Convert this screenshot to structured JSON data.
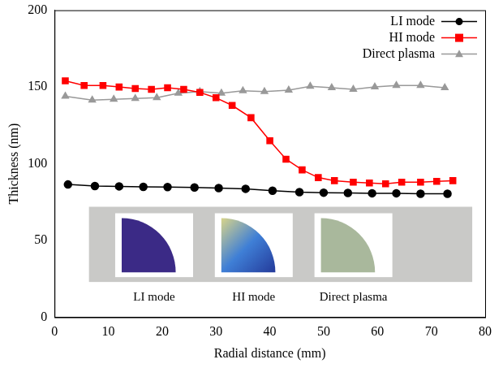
{
  "chart_data": {
    "type": "line",
    "x_label": "Radial distance (mm)",
    "y_label": "Thickness (nm)",
    "xlim": [
      0,
      80
    ],
    "xticks": [
      0,
      10,
      20,
      30,
      40,
      50,
      60,
      70,
      80
    ],
    "ylim": [
      0,
      200
    ],
    "yticks": [
      0,
      50,
      100,
      150,
      200
    ],
    "grid": false,
    "legend": "upper right",
    "annotations": [
      "LI mode",
      "HI mode",
      "Direct plasma"
    ],
    "series": [
      {
        "name": "LI mode",
        "color": "#000000",
        "marker": "circle",
        "line_style": "solid",
        "x": [
          2.5,
          7.5,
          12,
          16.5,
          21,
          26,
          30.5,
          35.5,
          40.5,
          45.5,
          50,
          54.5,
          59,
          63.5,
          68,
          73
        ],
        "values": [
          86.5,
          85.5,
          85.3,
          85,
          84.8,
          84.6,
          84.2,
          83.7,
          82.5,
          81.5,
          81.2,
          81,
          80.8,
          80.8,
          80.5,
          80.5
        ]
      },
      {
        "name": "HI mode",
        "color": "#ff0000",
        "marker": "square",
        "line_style": "solid",
        "x": [
          2,
          5.5,
          9,
          12,
          15,
          18,
          21,
          24,
          27,
          30,
          33,
          36.5,
          40,
          43,
          46,
          49,
          52,
          55.5,
          58.5,
          61.5,
          64.5,
          68,
          71,
          74
        ],
        "values": [
          154,
          151,
          151,
          150,
          149,
          148.5,
          149.5,
          148.5,
          146.5,
          143,
          138,
          130,
          115,
          103,
          96,
          91,
          89,
          88,
          87.5,
          87,
          88,
          88,
          88.5,
          89
        ]
      },
      {
        "name": "Direct plasma",
        "color": "#999999",
        "marker": "triangle",
        "line_style": "solid",
        "x": [
          2,
          7,
          11,
          15,
          19,
          23,
          27,
          31,
          35,
          39,
          43.5,
          47.5,
          51.5,
          55.5,
          59.5,
          63.5,
          68,
          72.5
        ],
        "values": [
          144,
          141.5,
          142,
          142.5,
          143,
          146,
          147,
          146,
          147.5,
          147,
          148,
          150.5,
          149.5,
          148.5,
          150,
          151,
          151,
          149.5
        ]
      }
    ]
  }
}
